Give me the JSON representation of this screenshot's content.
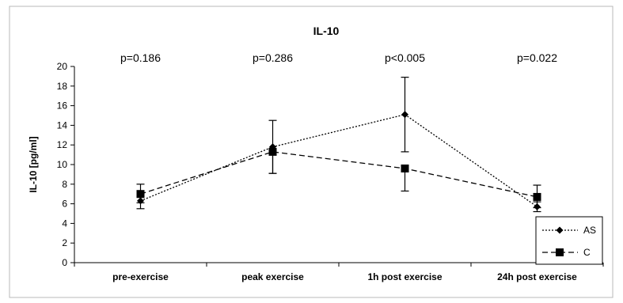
{
  "chart_data": {
    "type": "line",
    "title": "IL-10",
    "ylabel": "IL-10 [pg/ml]",
    "xlabel": "",
    "ylim": [
      0,
      20
    ],
    "yticks": [
      0,
      2,
      4,
      6,
      8,
      10,
      12,
      14,
      16,
      18,
      20
    ],
    "categories": [
      "pre-exercise",
      "peak exercise",
      "1h post exercise",
      "24h post exercise"
    ],
    "annotations": [
      "p=0.186",
      "p=0.286",
      "p<0.005",
      "p=0.022"
    ],
    "series": [
      {
        "name": "AS",
        "marker": "diamond",
        "line_style": "dotted",
        "values": [
          6.3,
          11.8,
          15.1,
          5.7
        ],
        "error_low": [
          5.5,
          9.1,
          11.3,
          5.2
        ],
        "error_high": [
          7.0,
          14.5,
          18.9,
          6.2
        ]
      },
      {
        "name": "C",
        "marker": "square",
        "line_style": "dashed",
        "values": [
          7.0,
          11.3,
          9.6,
          6.7
        ],
        "error_low": [
          6.1,
          9.1,
          7.3,
          5.6
        ],
        "error_high": [
          8.0,
          11.6,
          9.8,
          7.9
        ]
      }
    ],
    "legend_position": "bottom-right",
    "grid": false
  }
}
